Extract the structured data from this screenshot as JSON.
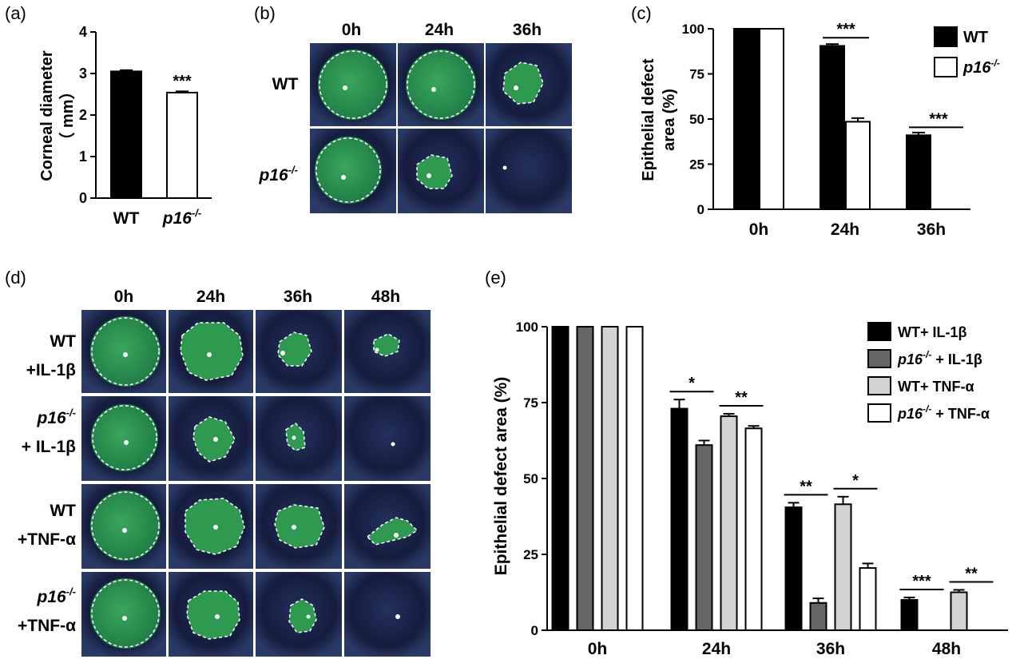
{
  "panels": {
    "a": {
      "label": "(a)"
    },
    "b": {
      "label": "(b)",
      "columns": [
        "0h",
        "24h",
        "36h"
      ],
      "rows": [
        {
          "main": "WT",
          "sup": ""
        },
        {
          "main": "p16",
          "sup": "-/-"
        }
      ]
    },
    "c": {
      "label": "(c)"
    },
    "d": {
      "label": "(d)",
      "columns": [
        "0h",
        "24h",
        "36h",
        "48h"
      ],
      "rows": [
        {
          "line1": "WT",
          "line1_sup": "",
          "line2": "+IL-1β"
        },
        {
          "line1": "p16",
          "line1_sup": "-/-",
          "line2": "+ IL-1β"
        },
        {
          "line1": "WT",
          "line1_sup": "",
          "line2": "+TNF-α"
        },
        {
          "line1": "p16",
          "line1_sup": "-/-",
          "line2": "+TNF-α"
        }
      ]
    },
    "e": {
      "label": "(e)"
    }
  },
  "colors": {
    "black": "#000000",
    "dark_gray": "#666666",
    "light_gray": "#d3d3d3",
    "white": "#ffffff",
    "stain": "#2e9a50"
  },
  "chart_data": [
    {
      "id": "a",
      "type": "bar",
      "categories": [
        "WT",
        "p16-/-"
      ],
      "tick_labels": [
        {
          "main": "WT",
          "sup": ""
        },
        {
          "main": "p16",
          "sup": "-/-"
        }
      ],
      "values": [
        3.05,
        2.54
      ],
      "errors": [
        0.03,
        0.03
      ],
      "colors": [
        "#000000",
        "#ffffff"
      ],
      "ylabel_lines": [
        "Corneal diameter",
        "（ mm）"
      ],
      "ylim": [
        0,
        4
      ],
      "yticks": [
        0,
        1,
        2,
        3,
        4
      ],
      "significance": [
        {
          "category_index": 1,
          "text": "***"
        }
      ]
    },
    {
      "id": "c",
      "type": "bar",
      "categories": [
        "0h",
        "24h",
        "36h"
      ],
      "ylabel_lines": [
        "Epithelial defect",
        "area (%)"
      ],
      "ylim": [
        0,
        100
      ],
      "yticks": [
        0,
        25,
        50,
        75,
        100
      ],
      "legend_position": "top-right",
      "series": [
        {
          "name": "WT",
          "name_sup": "",
          "color": "#000000",
          "values": [
            100,
            90.5,
            41
          ],
          "errors": [
            0,
            1,
            1.5
          ]
        },
        {
          "name": "p16",
          "name_sup": "-/-",
          "color": "#ffffff",
          "values": [
            100,
            48.5,
            0
          ],
          "errors": [
            0,
            2,
            0
          ]
        }
      ],
      "significance": [
        {
          "category_index": 1,
          "from_series": 0,
          "to_series": 1,
          "text": "***"
        },
        {
          "category_index": 2,
          "from_series": 0,
          "to_series": 1,
          "text": "***"
        }
      ]
    },
    {
      "id": "e",
      "type": "bar",
      "categories": [
        "0h",
        "24h",
        "36h",
        "48h"
      ],
      "ylabel": "Epithelial defect area (%)",
      "ylim": [
        0,
        100
      ],
      "yticks": [
        0,
        25,
        50,
        75,
        100
      ],
      "legend_position": "top-right",
      "series": [
        {
          "name": "WT",
          "name_sup": "",
          "name_suffix": "+ IL-1β",
          "color": "#000000",
          "values": [
            100,
            73,
            40.5,
            10
          ],
          "errors": [
            0,
            3,
            1.5,
            0.8
          ]
        },
        {
          "name": "p16",
          "name_sup": "-/-",
          "name_suffix": " + IL-1β",
          "color": "#666666",
          "values": [
            100,
            61,
            9,
            0
          ],
          "errors": [
            0,
            1.5,
            1.5,
            0
          ]
        },
        {
          "name": "WT",
          "name_sup": "",
          "name_suffix": "+ TNF-α",
          "color": "#d3d3d3",
          "values": [
            100,
            70.5,
            41.5,
            12.5
          ],
          "errors": [
            0,
            0.8,
            2.5,
            0.8
          ]
        },
        {
          "name": "p16",
          "name_sup": "-/-",
          "name_suffix": " + TNF-α",
          "color": "#ffffff",
          "values": [
            100,
            66.5,
            20.5,
            0
          ],
          "errors": [
            0,
            0.8,
            1.5,
            0
          ]
        }
      ],
      "significance": [
        {
          "category_index": 1,
          "from_series": 0,
          "to_series": 1,
          "text": "*"
        },
        {
          "category_index": 1,
          "from_series": 2,
          "to_series": 3,
          "text": "**"
        },
        {
          "category_index": 2,
          "from_series": 0,
          "to_series": 1,
          "text": "**"
        },
        {
          "category_index": 2,
          "from_series": 2,
          "to_series": 3,
          "text": "*"
        },
        {
          "category_index": 3,
          "from_series": 0,
          "to_series": 1,
          "text": "***"
        },
        {
          "category_index": 3,
          "from_series": 2,
          "to_series": 3,
          "text": "**"
        }
      ]
    }
  ]
}
